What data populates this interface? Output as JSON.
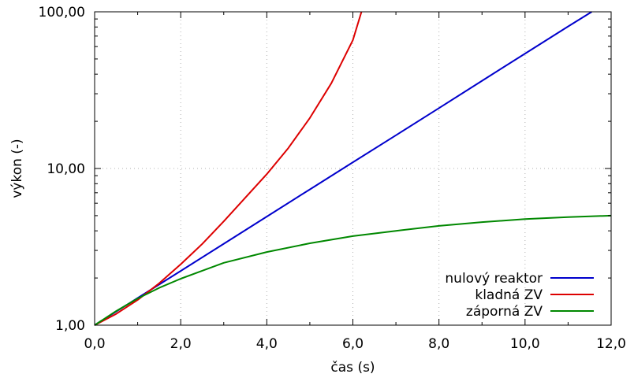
{
  "chart_data": {
    "type": "line",
    "xlabel": "čas (s)",
    "ylabel": "výkon (-)",
    "y_scale": "log",
    "xlim": [
      0,
      12
    ],
    "ylim": [
      1,
      100
    ],
    "grid": true,
    "legend_position": "bottom-right",
    "x_ticks": [
      {
        "value": 0,
        "label": "0,0"
      },
      {
        "value": 2,
        "label": "2,0"
      },
      {
        "value": 4,
        "label": "4,0"
      },
      {
        "value": 6,
        "label": "6,0"
      },
      {
        "value": 8,
        "label": "8,0"
      },
      {
        "value": 10,
        "label": "10,0"
      },
      {
        "value": 12,
        "label": "12,0"
      }
    ],
    "y_ticks": [
      {
        "value": 1,
        "label": "1,00"
      },
      {
        "value": 10,
        "label": "10,00"
      },
      {
        "value": 100,
        "label": "100,00"
      }
    ],
    "series": [
      {
        "name": "nulový reaktor",
        "color": "#0000cc",
        "x": [
          0,
          1,
          2,
          3,
          4,
          5,
          6,
          7,
          8,
          9,
          10,
          11,
          11.55
        ],
        "y": [
          1.0,
          1.49,
          2.22,
          3.31,
          4.93,
          7.35,
          10.96,
          16.3,
          24.3,
          36.3,
          54.1,
          80.6,
          100
        ]
      },
      {
        "name": "kladná ZV",
        "color": "#dd0000",
        "x": [
          0,
          0.5,
          1,
          1.5,
          2,
          2.5,
          3,
          3.5,
          4,
          4.5,
          5,
          5.5,
          6,
          6.2
        ],
        "y": [
          1.0,
          1.18,
          1.45,
          1.85,
          2.45,
          3.3,
          4.6,
          6.5,
          9.2,
          13.5,
          21,
          35,
          66,
          100
        ]
      },
      {
        "name": "záporná ZV",
        "color": "#008800",
        "x": [
          0,
          0.5,
          1,
          1.5,
          2,
          3,
          4,
          5,
          6,
          7,
          8,
          9,
          10,
          11,
          12
        ],
        "y": [
          1.0,
          1.23,
          1.48,
          1.73,
          1.98,
          2.5,
          2.93,
          3.33,
          3.7,
          4.0,
          4.3,
          4.55,
          4.75,
          4.9,
          5.0
        ]
      }
    ]
  }
}
